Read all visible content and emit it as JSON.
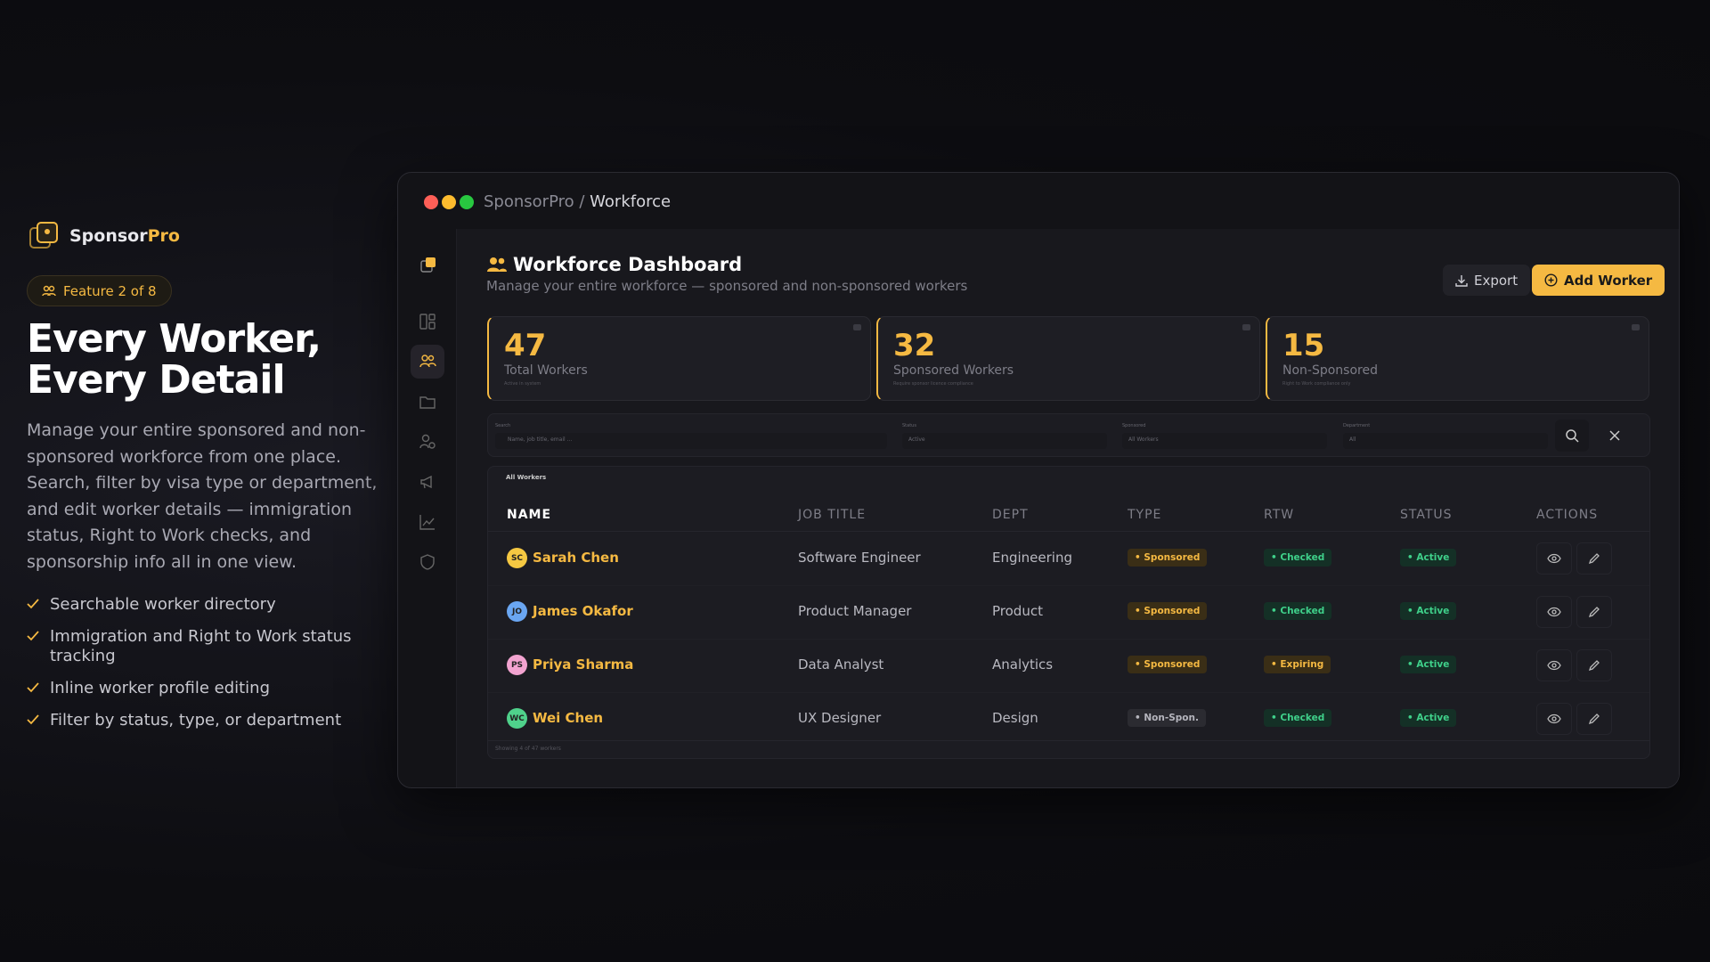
{
  "brand": {
    "name_a": "Sponsor",
    "name_b": "Pro"
  },
  "hero": {
    "badge": "Feature 2 of 8",
    "heading": [
      "Every Worker,",
      "Every Detail"
    ],
    "description": "Manage your entire sponsored and non-sponsored workforce from one place. Search, filter by visa type or department, and edit worker details — immigration status, Right to Work checks, and sponsorship info all in one view.",
    "bullets": [
      "Searchable worker directory",
      "Immigration and Right to Work status tracking",
      "Inline worker profile editing",
      "Filter by status, type, or department"
    ]
  },
  "window": {
    "crumb_root": "SponsorPro",
    "crumb_sep": "/",
    "crumb_page": "Workforce"
  },
  "dashboard": {
    "title": "Workforce Dashboard",
    "subtitle": "Manage your entire workforce — sponsored and non-sponsored workers",
    "export": "Export",
    "add": "Add Worker"
  },
  "stats": [
    {
      "value": 47,
      "label": "Total Workers",
      "note": "Active in system"
    },
    {
      "value": 32,
      "label": "Sponsored Workers",
      "note": "Require sponsor licence compliance"
    },
    {
      "value": 15,
      "label": "Non-Sponsored",
      "note": "Right to Work compliance only"
    }
  ],
  "filters": [
    {
      "label": "Search",
      "placeholder": "Name, job title, email ..."
    },
    {
      "label": "Status",
      "placeholder": "Active"
    },
    {
      "label": "Sponsored",
      "placeholder": "All Workers"
    },
    {
      "label": "Department",
      "placeholder": "All"
    }
  ],
  "table": {
    "caption": "All Workers",
    "columns": [
      "NAME",
      "JOB TITLE",
      "DEPT",
      "TYPE",
      "RTW",
      "STATUS",
      "ACTIONS"
    ],
    "rows": [
      {
        "initials": "SC",
        "name": "Sarah Chen",
        "job": "Software Engineer",
        "dept": "Engineering",
        "type": "Sponsored",
        "rtw": "Checked",
        "status": "Active"
      },
      {
        "initials": "JO",
        "name": "James Okafor",
        "job": "Product Manager",
        "dept": "Product",
        "type": "Sponsored",
        "rtw": "Checked",
        "status": "Active"
      },
      {
        "initials": "PS",
        "name": "Priya Sharma",
        "job": "Data Analyst",
        "dept": "Analytics",
        "type": "Sponsored",
        "rtw": "Expiring",
        "status": "Active"
      },
      {
        "initials": "WC",
        "name": "Wei Chen",
        "job": "UX Designer",
        "dept": "Design",
        "type": "Non-Spon.",
        "rtw": "Checked",
        "status": "Active"
      }
    ],
    "footer": "Showing 4 of 47 workers"
  }
}
